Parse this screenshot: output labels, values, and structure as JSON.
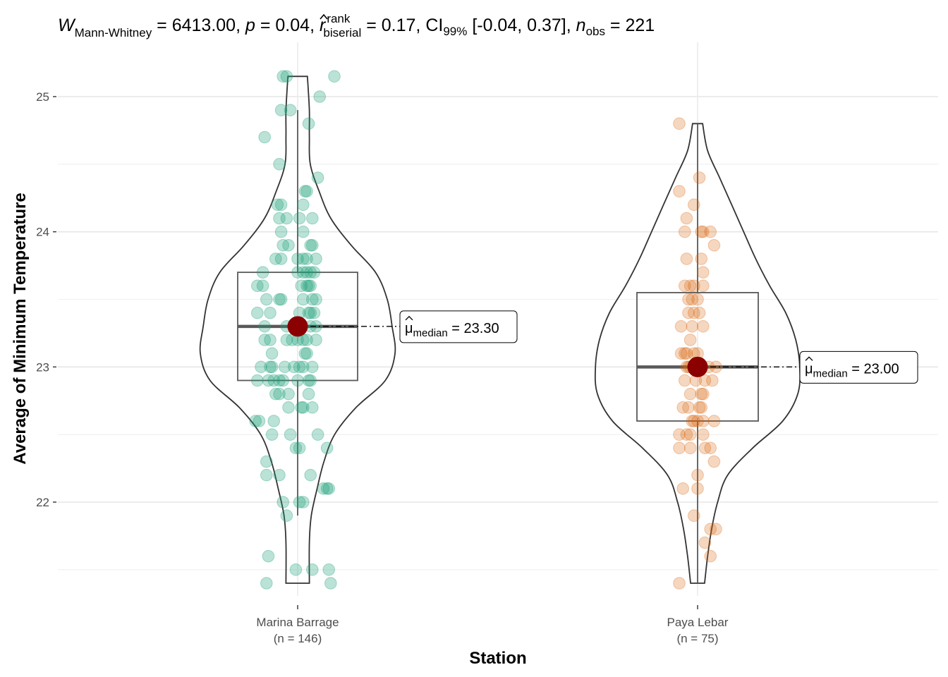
{
  "chart_data": {
    "type": "violin-box-scatter",
    "title": "",
    "subtitle": {
      "statistic_symbol": "W",
      "statistic_subscript": "Mann-Whitney",
      "statistic_value": "6413.00",
      "p_symbol": "p",
      "p_value": "0.04",
      "effsize_symbol": "r",
      "effsize_superscript": "rank",
      "effsize_subscript": "biserial",
      "effsize_value": "0.17",
      "ci_label": "CI",
      "ci_subscript": "99%",
      "ci_value": "[-0.04, 0.37]",
      "n_symbol": "n",
      "n_subscript": "obs",
      "n_value": "221",
      "full_text": "W_Mann-Whitney = 6413.00, p = 0.04, r̂_biserial^rank = 0.17, CI_99% [-0.04, 0.37], n_obs = 221"
    },
    "xlabel": "Station",
    "ylabel": "Average of Minimum Temperature",
    "ylim": [
      21.35,
      25.25
    ],
    "yticks": [
      22,
      23,
      24,
      25
    ],
    "ytick_labels": [
      "22",
      "23",
      "24",
      "25"
    ],
    "grid": true,
    "legend": "none",
    "categories": [
      {
        "name": "Marina Barrage",
        "n_label": "(n = 146)",
        "n": 146,
        "color": "#1b9e77",
        "median": 23.3,
        "median_label_symbol": "μ̂",
        "median_label_subscript": "median",
        "median_label_value": "23.30",
        "box": {
          "q1": 22.9,
          "median": 23.3,
          "q3": 23.7,
          "whisker_low": 21.9,
          "whisker_high": 24.9
        },
        "violin_range": [
          21.4,
          25.15
        ],
        "violin_width_profile": [
          [
            21.4,
            0.12
          ],
          [
            21.7,
            0.12
          ],
          [
            21.9,
            0.14
          ],
          [
            22.1,
            0.2
          ],
          [
            22.3,
            0.27
          ],
          [
            22.5,
            0.38
          ],
          [
            22.7,
            0.6
          ],
          [
            22.9,
            0.9
          ],
          [
            23.1,
            1.0
          ],
          [
            23.3,
            0.97
          ],
          [
            23.5,
            0.92
          ],
          [
            23.7,
            0.8
          ],
          [
            23.9,
            0.55
          ],
          [
            24.1,
            0.34
          ],
          [
            24.3,
            0.22
          ],
          [
            24.5,
            0.13
          ],
          [
            24.7,
            0.12
          ],
          [
            24.9,
            0.12
          ],
          [
            25.15,
            0.1
          ]
        ],
        "points": [
          [
            25.15,
            -0.08
          ],
          [
            25.15,
            -0.06
          ],
          [
            25.15,
            0.2
          ],
          [
            25.0,
            0.12
          ],
          [
            24.9,
            -0.09
          ],
          [
            24.9,
            -0.04
          ],
          [
            24.8,
            0.06
          ],
          [
            24.7,
            -0.18
          ],
          [
            24.5,
            -0.1
          ],
          [
            24.4,
            0.11
          ],
          [
            24.3,
            0.04
          ],
          [
            24.3,
            0.05
          ],
          [
            24.2,
            -0.11
          ],
          [
            24.2,
            -0.09
          ],
          [
            24.2,
            0.03
          ],
          [
            24.1,
            -0.1
          ],
          [
            24.1,
            -0.06
          ],
          [
            24.1,
            0.01
          ],
          [
            24.1,
            0.08
          ],
          [
            24.0,
            -0.09
          ],
          [
            24.0,
            0.03
          ],
          [
            23.9,
            -0.08
          ],
          [
            23.9,
            -0.05
          ],
          [
            23.9,
            0.07
          ],
          [
            23.9,
            0.08
          ],
          [
            23.8,
            -0.12
          ],
          [
            23.8,
            -0.09
          ],
          [
            23.8,
            0.0
          ],
          [
            23.8,
            0.03
          ],
          [
            23.8,
            0.05
          ],
          [
            23.8,
            0.1
          ],
          [
            23.7,
            -0.19
          ],
          [
            23.7,
            0.0
          ],
          [
            23.7,
            0.03
          ],
          [
            23.7,
            0.05
          ],
          [
            23.7,
            0.07
          ],
          [
            23.7,
            0.09
          ],
          [
            23.6,
            -0.22
          ],
          [
            23.6,
            -0.19
          ],
          [
            23.6,
            0.02
          ],
          [
            23.6,
            0.05
          ],
          [
            23.6,
            0.06
          ],
          [
            23.6,
            0.07
          ],
          [
            23.5,
            -0.17
          ],
          [
            23.5,
            -0.1
          ],
          [
            23.5,
            -0.09
          ],
          [
            23.5,
            0.03
          ],
          [
            23.5,
            0.08
          ],
          [
            23.5,
            0.1
          ],
          [
            23.4,
            -0.22
          ],
          [
            23.4,
            -0.15
          ],
          [
            23.4,
            0.01
          ],
          [
            23.4,
            0.06
          ],
          [
            23.4,
            0.07
          ],
          [
            23.4,
            0.09
          ],
          [
            23.3,
            -0.18
          ],
          [
            23.3,
            -0.06
          ],
          [
            23.3,
            0.01
          ],
          [
            23.3,
            0.07
          ],
          [
            23.3,
            0.1
          ],
          [
            23.2,
            -0.18
          ],
          [
            23.2,
            -0.15
          ],
          [
            23.2,
            -0.06
          ],
          [
            23.2,
            -0.03
          ],
          [
            23.2,
            0.0
          ],
          [
            23.2,
            0.03
          ],
          [
            23.2,
            0.05
          ],
          [
            23.2,
            0.1
          ],
          [
            23.1,
            -0.14
          ],
          [
            23.1,
            0.04
          ],
          [
            23.1,
            0.05
          ],
          [
            23.0,
            -0.2
          ],
          [
            23.0,
            -0.15
          ],
          [
            23.0,
            -0.14
          ],
          [
            23.0,
            -0.07
          ],
          [
            23.0,
            -0.02
          ],
          [
            23.0,
            0.01
          ],
          [
            23.0,
            0.03
          ],
          [
            23.0,
            0.08
          ],
          [
            22.9,
            -0.22
          ],
          [
            22.9,
            -0.16
          ],
          [
            22.9,
            -0.13
          ],
          [
            22.9,
            -0.1
          ],
          [
            22.9,
            -0.08
          ],
          [
            22.9,
            0.0
          ],
          [
            22.9,
            0.06
          ],
          [
            22.9,
            0.07
          ],
          [
            22.8,
            -0.12
          ],
          [
            22.8,
            -0.1
          ],
          [
            22.8,
            -0.05
          ],
          [
            22.8,
            0.06
          ],
          [
            22.7,
            -0.05
          ],
          [
            22.7,
            0.02
          ],
          [
            22.7,
            0.03
          ],
          [
            22.7,
            0.08
          ],
          [
            22.6,
            -0.23
          ],
          [
            22.6,
            -0.21
          ],
          [
            22.6,
            -0.13
          ],
          [
            22.5,
            -0.14
          ],
          [
            22.5,
            -0.04
          ],
          [
            22.5,
            0.11
          ],
          [
            22.4,
            -0.01
          ],
          [
            22.4,
            0.01
          ],
          [
            22.4,
            0.16
          ],
          [
            22.3,
            -0.17
          ],
          [
            22.2,
            -0.17
          ],
          [
            22.2,
            -0.1
          ],
          [
            22.2,
            0.07
          ],
          [
            22.1,
            0.14
          ],
          [
            22.1,
            0.16
          ],
          [
            22.1,
            0.17
          ],
          [
            22.0,
            -0.08
          ],
          [
            22.0,
            0.01
          ],
          [
            22.0,
            0.03
          ],
          [
            21.9,
            -0.06
          ],
          [
            21.6,
            -0.16
          ],
          [
            21.5,
            -0.01
          ],
          [
            21.5,
            0.08
          ],
          [
            21.5,
            0.17
          ],
          [
            21.4,
            -0.17
          ],
          [
            21.4,
            0.18
          ]
        ]
      },
      {
        "name": "Paya Lebar",
        "n_label": "(n = 75)",
        "n": 75,
        "color": "#d95f02",
        "median": 23.0,
        "median_label_symbol": "μ̂",
        "median_label_subscript": "median",
        "median_label_value": "23.00",
        "box": {
          "q1": 22.6,
          "median": 23.0,
          "q3": 23.55,
          "whisker_low": 21.4,
          "whisker_high": 24.8
        },
        "violin_range": [
          21.4,
          24.8
        ],
        "violin_width_profile": [
          [
            21.4,
            0.07
          ],
          [
            21.6,
            0.1
          ],
          [
            21.8,
            0.14
          ],
          [
            22.0,
            0.2
          ],
          [
            22.2,
            0.3
          ],
          [
            22.4,
            0.55
          ],
          [
            22.6,
            0.85
          ],
          [
            22.8,
            1.0
          ],
          [
            23.0,
            1.02
          ],
          [
            23.2,
            0.98
          ],
          [
            23.4,
            0.88
          ],
          [
            23.6,
            0.72
          ],
          [
            23.8,
            0.58
          ],
          [
            24.0,
            0.46
          ],
          [
            24.2,
            0.34
          ],
          [
            24.4,
            0.22
          ],
          [
            24.6,
            0.1
          ],
          [
            24.8,
            0.05
          ]
        ],
        "points": [
          [
            24.8,
            -0.1
          ],
          [
            24.4,
            0.01
          ],
          [
            24.3,
            -0.1
          ],
          [
            24.2,
            -0.02
          ],
          [
            24.1,
            -0.06
          ],
          [
            24.0,
            -0.07
          ],
          [
            24.0,
            0.02
          ],
          [
            24.0,
            0.03
          ],
          [
            24.0,
            0.07
          ],
          [
            23.9,
            0.09
          ],
          [
            23.8,
            -0.06
          ],
          [
            23.8,
            0.02
          ],
          [
            23.7,
            0.03
          ],
          [
            23.6,
            -0.07
          ],
          [
            23.6,
            -0.04
          ],
          [
            23.6,
            -0.02
          ],
          [
            23.6,
            0.03
          ],
          [
            23.5,
            -0.05
          ],
          [
            23.5,
            -0.03
          ],
          [
            23.5,
            0.0
          ],
          [
            23.4,
            -0.05
          ],
          [
            23.4,
            -0.02
          ],
          [
            23.4,
            0.01
          ],
          [
            23.3,
            -0.09
          ],
          [
            23.3,
            -0.03
          ],
          [
            23.3,
            0.03
          ],
          [
            23.2,
            -0.04
          ],
          [
            23.1,
            -0.09
          ],
          [
            23.1,
            -0.07
          ],
          [
            23.1,
            -0.06
          ],
          [
            23.1,
            -0.02
          ],
          [
            23.1,
            0.0
          ],
          [
            23.0,
            -0.06
          ],
          [
            23.0,
            -0.05
          ],
          [
            23.0,
            -0.04
          ],
          [
            23.0,
            0.06
          ],
          [
            23.0,
            0.1
          ],
          [
            22.9,
            -0.07
          ],
          [
            22.9,
            -0.01
          ],
          [
            22.9,
            0.04
          ],
          [
            22.9,
            0.08
          ],
          [
            22.8,
            -0.04
          ],
          [
            22.8,
            0.02
          ],
          [
            22.8,
            0.03
          ],
          [
            22.7,
            -0.08
          ],
          [
            22.7,
            -0.05
          ],
          [
            22.7,
            0.01
          ],
          [
            22.7,
            0.02
          ],
          [
            22.6,
            -0.03
          ],
          [
            22.6,
            -0.02
          ],
          [
            22.6,
            0.0
          ],
          [
            22.6,
            0.03
          ],
          [
            22.6,
            0.09
          ],
          [
            22.5,
            -0.1
          ],
          [
            22.5,
            -0.06
          ],
          [
            22.5,
            -0.04
          ],
          [
            22.5,
            0.03
          ],
          [
            22.4,
            -0.1
          ],
          [
            22.4,
            -0.04
          ],
          [
            22.4,
            0.04
          ],
          [
            22.4,
            0.07
          ],
          [
            22.3,
            0.09
          ],
          [
            22.2,
            0.0
          ],
          [
            22.1,
            -0.08
          ],
          [
            22.1,
            0.0
          ],
          [
            21.9,
            -0.02
          ],
          [
            21.8,
            0.07
          ],
          [
            21.8,
            0.1
          ],
          [
            21.7,
            0.04
          ],
          [
            21.6,
            0.07
          ],
          [
            21.4,
            -0.1
          ]
        ]
      }
    ],
    "median_marker_color": "#8b0000"
  }
}
